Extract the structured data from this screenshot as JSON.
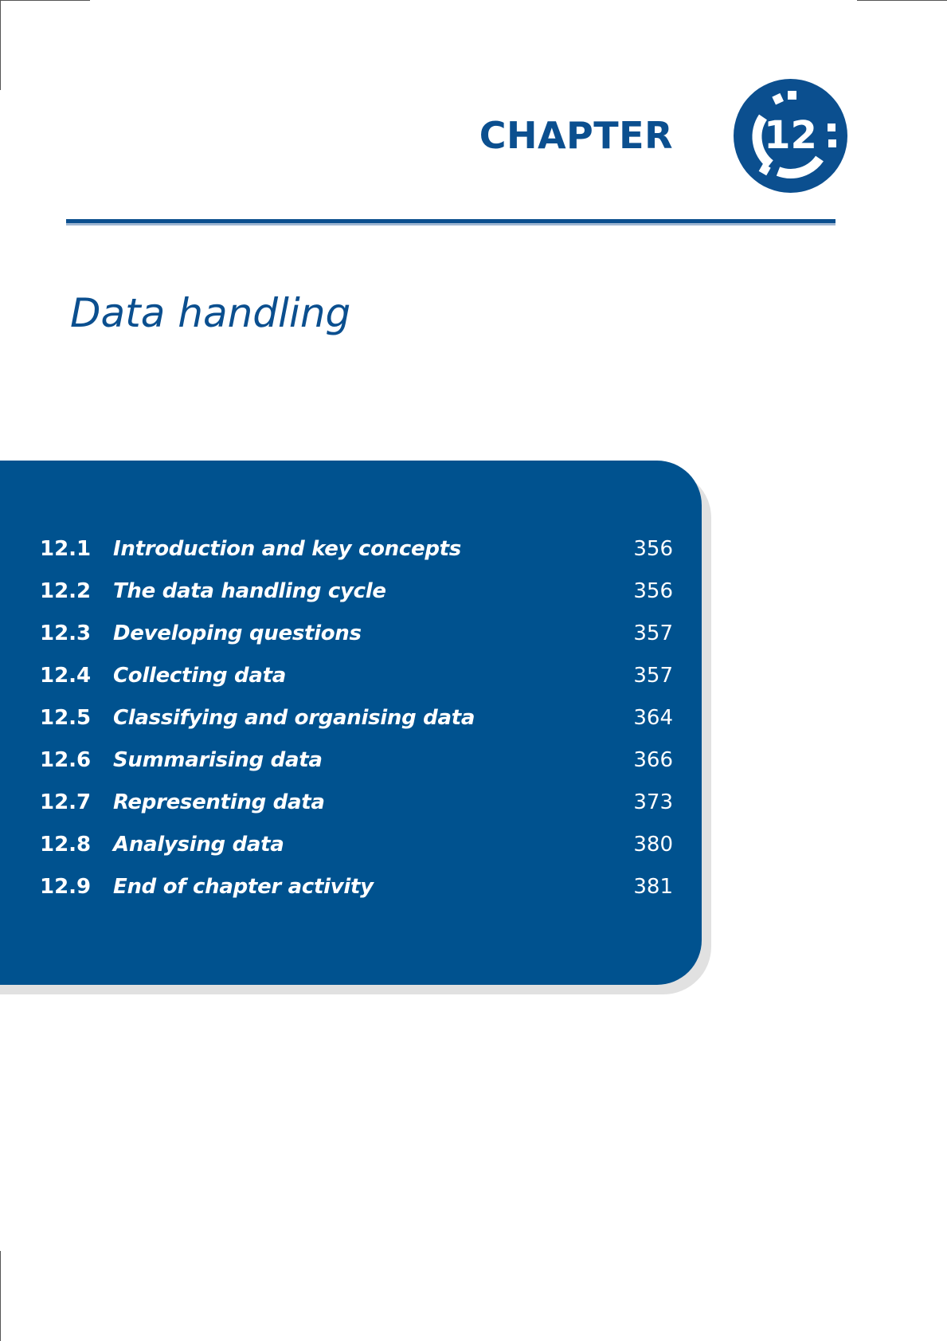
{
  "header": {
    "chapter_word": "CHAPTER",
    "chapter_number": "12",
    "accent_color": "#0b4f8f"
  },
  "chapter_title": "Data handling",
  "toc": {
    "panel_color": "#00528f",
    "items": [
      {
        "number": "12.1",
        "title": "Introduction and key concepts",
        "page": "356"
      },
      {
        "number": "12.2",
        "title": "The data handling cycle",
        "page": "356"
      },
      {
        "number": "12.3",
        "title": "Developing questions",
        "page": "357"
      },
      {
        "number": "12.4",
        "title": "Collecting data",
        "page": "357"
      },
      {
        "number": "12.5",
        "title": "Classifying and organising data",
        "page": "364"
      },
      {
        "number": "12.6",
        "title": "Summarising data",
        "page": "366"
      },
      {
        "number": "12.7",
        "title": "Representing data",
        "page": "373"
      },
      {
        "number": "12.8",
        "title": "Analysing data",
        "page": "380"
      },
      {
        "number": "12.9",
        "title": "End of chapter activity",
        "page": "381"
      }
    ]
  }
}
